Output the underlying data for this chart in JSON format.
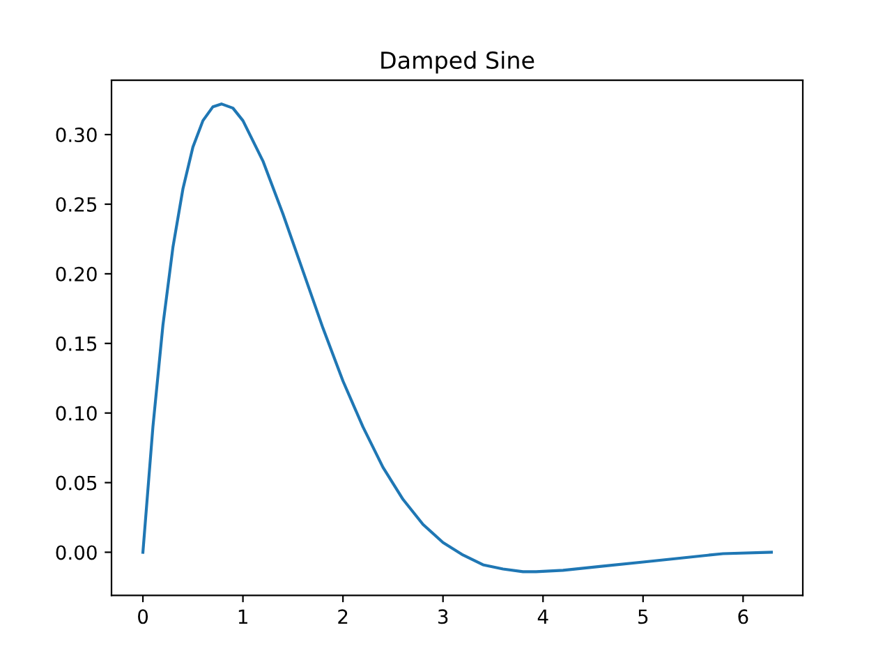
{
  "chart_data": {
    "type": "line",
    "title": "Damped Sine",
    "x": [
      0,
      0.1,
      0.2,
      0.3,
      0.4,
      0.5,
      0.6,
      0.7,
      0.785,
      0.9,
      1.0,
      1.2,
      1.4,
      1.6,
      1.8,
      2.0,
      2.2,
      2.4,
      2.6,
      2.8,
      3.0,
      3.2,
      3.4,
      3.6,
      3.8,
      3.93,
      4.2,
      4.6,
      5.0,
      5.4,
      5.8,
      6.283
    ],
    "series": [
      {
        "color": "#1f77b4",
        "values": [
          0,
          0.09,
          0.163,
          0.219,
          0.261,
          0.291,
          0.31,
          0.32,
          0.322,
          0.319,
          0.31,
          0.281,
          0.243,
          0.202,
          0.161,
          0.123,
          0.09,
          0.061,
          0.038,
          0.02,
          0.007,
          -0.002,
          -0.009,
          -0.012,
          -0.014,
          -0.014,
          -0.013,
          -0.01,
          -0.007,
          -0.004,
          -0.001,
          0
        ]
      }
    ],
    "xlim": [
      -0.314,
      6.597
    ],
    "ylim": [
      -0.031,
      0.339
    ],
    "xticks": [
      0,
      1,
      2,
      3,
      4,
      5,
      6
    ],
    "yticks": [
      {
        "value": 0,
        "label": "0.00"
      },
      {
        "value": 0.05,
        "label": "0.05"
      },
      {
        "value": 0.1,
        "label": "0.10"
      },
      {
        "value": 0.15,
        "label": "0.15"
      },
      {
        "value": 0.2,
        "label": "0.20"
      },
      {
        "value": 0.25,
        "label": "0.25"
      },
      {
        "value": 0.3,
        "label": "0.30"
      }
    ],
    "grid": false,
    "legend": false
  }
}
